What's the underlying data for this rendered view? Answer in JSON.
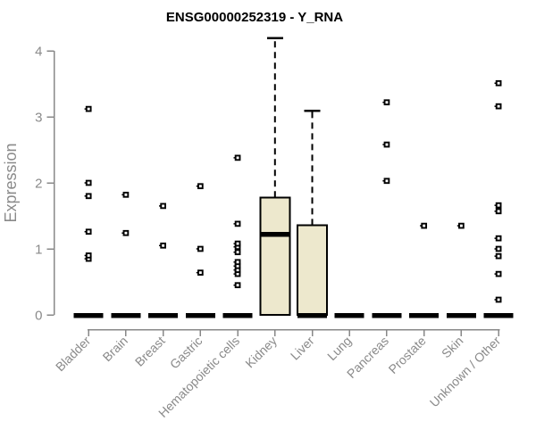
{
  "chart_data": {
    "type": "boxplot",
    "title": "ENSG00000252319 - Y_RNA",
    "ylabel": "Expression",
    "xlabel": "",
    "ylim": [
      0,
      4
    ],
    "yticks": [
      0,
      1,
      2,
      3,
      4
    ],
    "grid": false,
    "legend": "none",
    "categories": [
      "Bladder",
      "Brain",
      "Breast",
      "Gastric",
      "Hematopoietic cells",
      "Kidney",
      "Liver",
      "Lung",
      "Pancreas",
      "Prostate",
      "Skin",
      "Unknown / Other"
    ],
    "series": [
      {
        "name": "Bladder",
        "q1": 0,
        "median": 0,
        "q3": 0,
        "whisker_low": 0,
        "whisker_high": 0,
        "outliers": [
          0.85,
          0.9,
          1.26,
          1.8,
          2.0,
          3.12
        ]
      },
      {
        "name": "Brain",
        "q1": 0,
        "median": 0,
        "q3": 0,
        "whisker_low": 0,
        "whisker_high": 0,
        "outliers": [
          1.24,
          1.82
        ]
      },
      {
        "name": "Breast",
        "q1": 0,
        "median": 0,
        "q3": 0,
        "whisker_low": 0,
        "whisker_high": 0,
        "outliers": [
          1.05,
          1.65
        ]
      },
      {
        "name": "Gastric",
        "q1": 0,
        "median": 0,
        "q3": 0,
        "whisker_low": 0,
        "whisker_high": 0,
        "outliers": [
          0.64,
          1.0,
          1.95
        ]
      },
      {
        "name": "Hematopoietic cells",
        "q1": 0,
        "median": 0,
        "q3": 0,
        "whisker_low": 0,
        "whisker_high": 0,
        "outliers": [
          0.45,
          0.62,
          0.68,
          0.74,
          0.8,
          0.95,
          1.03,
          1.08,
          1.38,
          2.38
        ]
      },
      {
        "name": "Kidney",
        "q1": 0,
        "median": 1.23,
        "q3": 1.78,
        "whisker_low": 0,
        "whisker_high": 4.19,
        "outliers": []
      },
      {
        "name": "Liver",
        "q1": 0,
        "median": 0,
        "q3": 1.36,
        "whisker_low": 0,
        "whisker_high": 3.09,
        "outliers": []
      },
      {
        "name": "Lung",
        "q1": 0,
        "median": 0,
        "q3": 0,
        "whisker_low": 0,
        "whisker_high": 0,
        "outliers": []
      },
      {
        "name": "Pancreas",
        "q1": 0,
        "median": 0,
        "q3": 0,
        "whisker_low": 0,
        "whisker_high": 0,
        "outliers": [
          2.03,
          2.58,
          3.22
        ]
      },
      {
        "name": "Prostate",
        "q1": 0,
        "median": 0,
        "q3": 0,
        "whisker_low": 0,
        "whisker_high": 0,
        "outliers": [
          1.35
        ]
      },
      {
        "name": "Skin",
        "q1": 0,
        "median": 0,
        "q3": 0,
        "whisker_low": 0,
        "whisker_high": 0,
        "outliers": [
          1.35
        ]
      },
      {
        "name": "Unknown / Other",
        "q1": 0,
        "median": 0,
        "q3": 0,
        "whisker_low": 0,
        "whisker_high": 0,
        "outliers": [
          0.23,
          0.62,
          0.89,
          1.0,
          1.16,
          1.57,
          1.66,
          3.16,
          3.51
        ]
      }
    ],
    "colors": {
      "box_fill": "#EDE8CD",
      "box_stroke": "#000000",
      "median": "#000000",
      "whisker": "#000000",
      "outlier": "#000000",
      "axis": "#888888",
      "tick_label": "#8a8a8a",
      "title": "#000000"
    }
  }
}
